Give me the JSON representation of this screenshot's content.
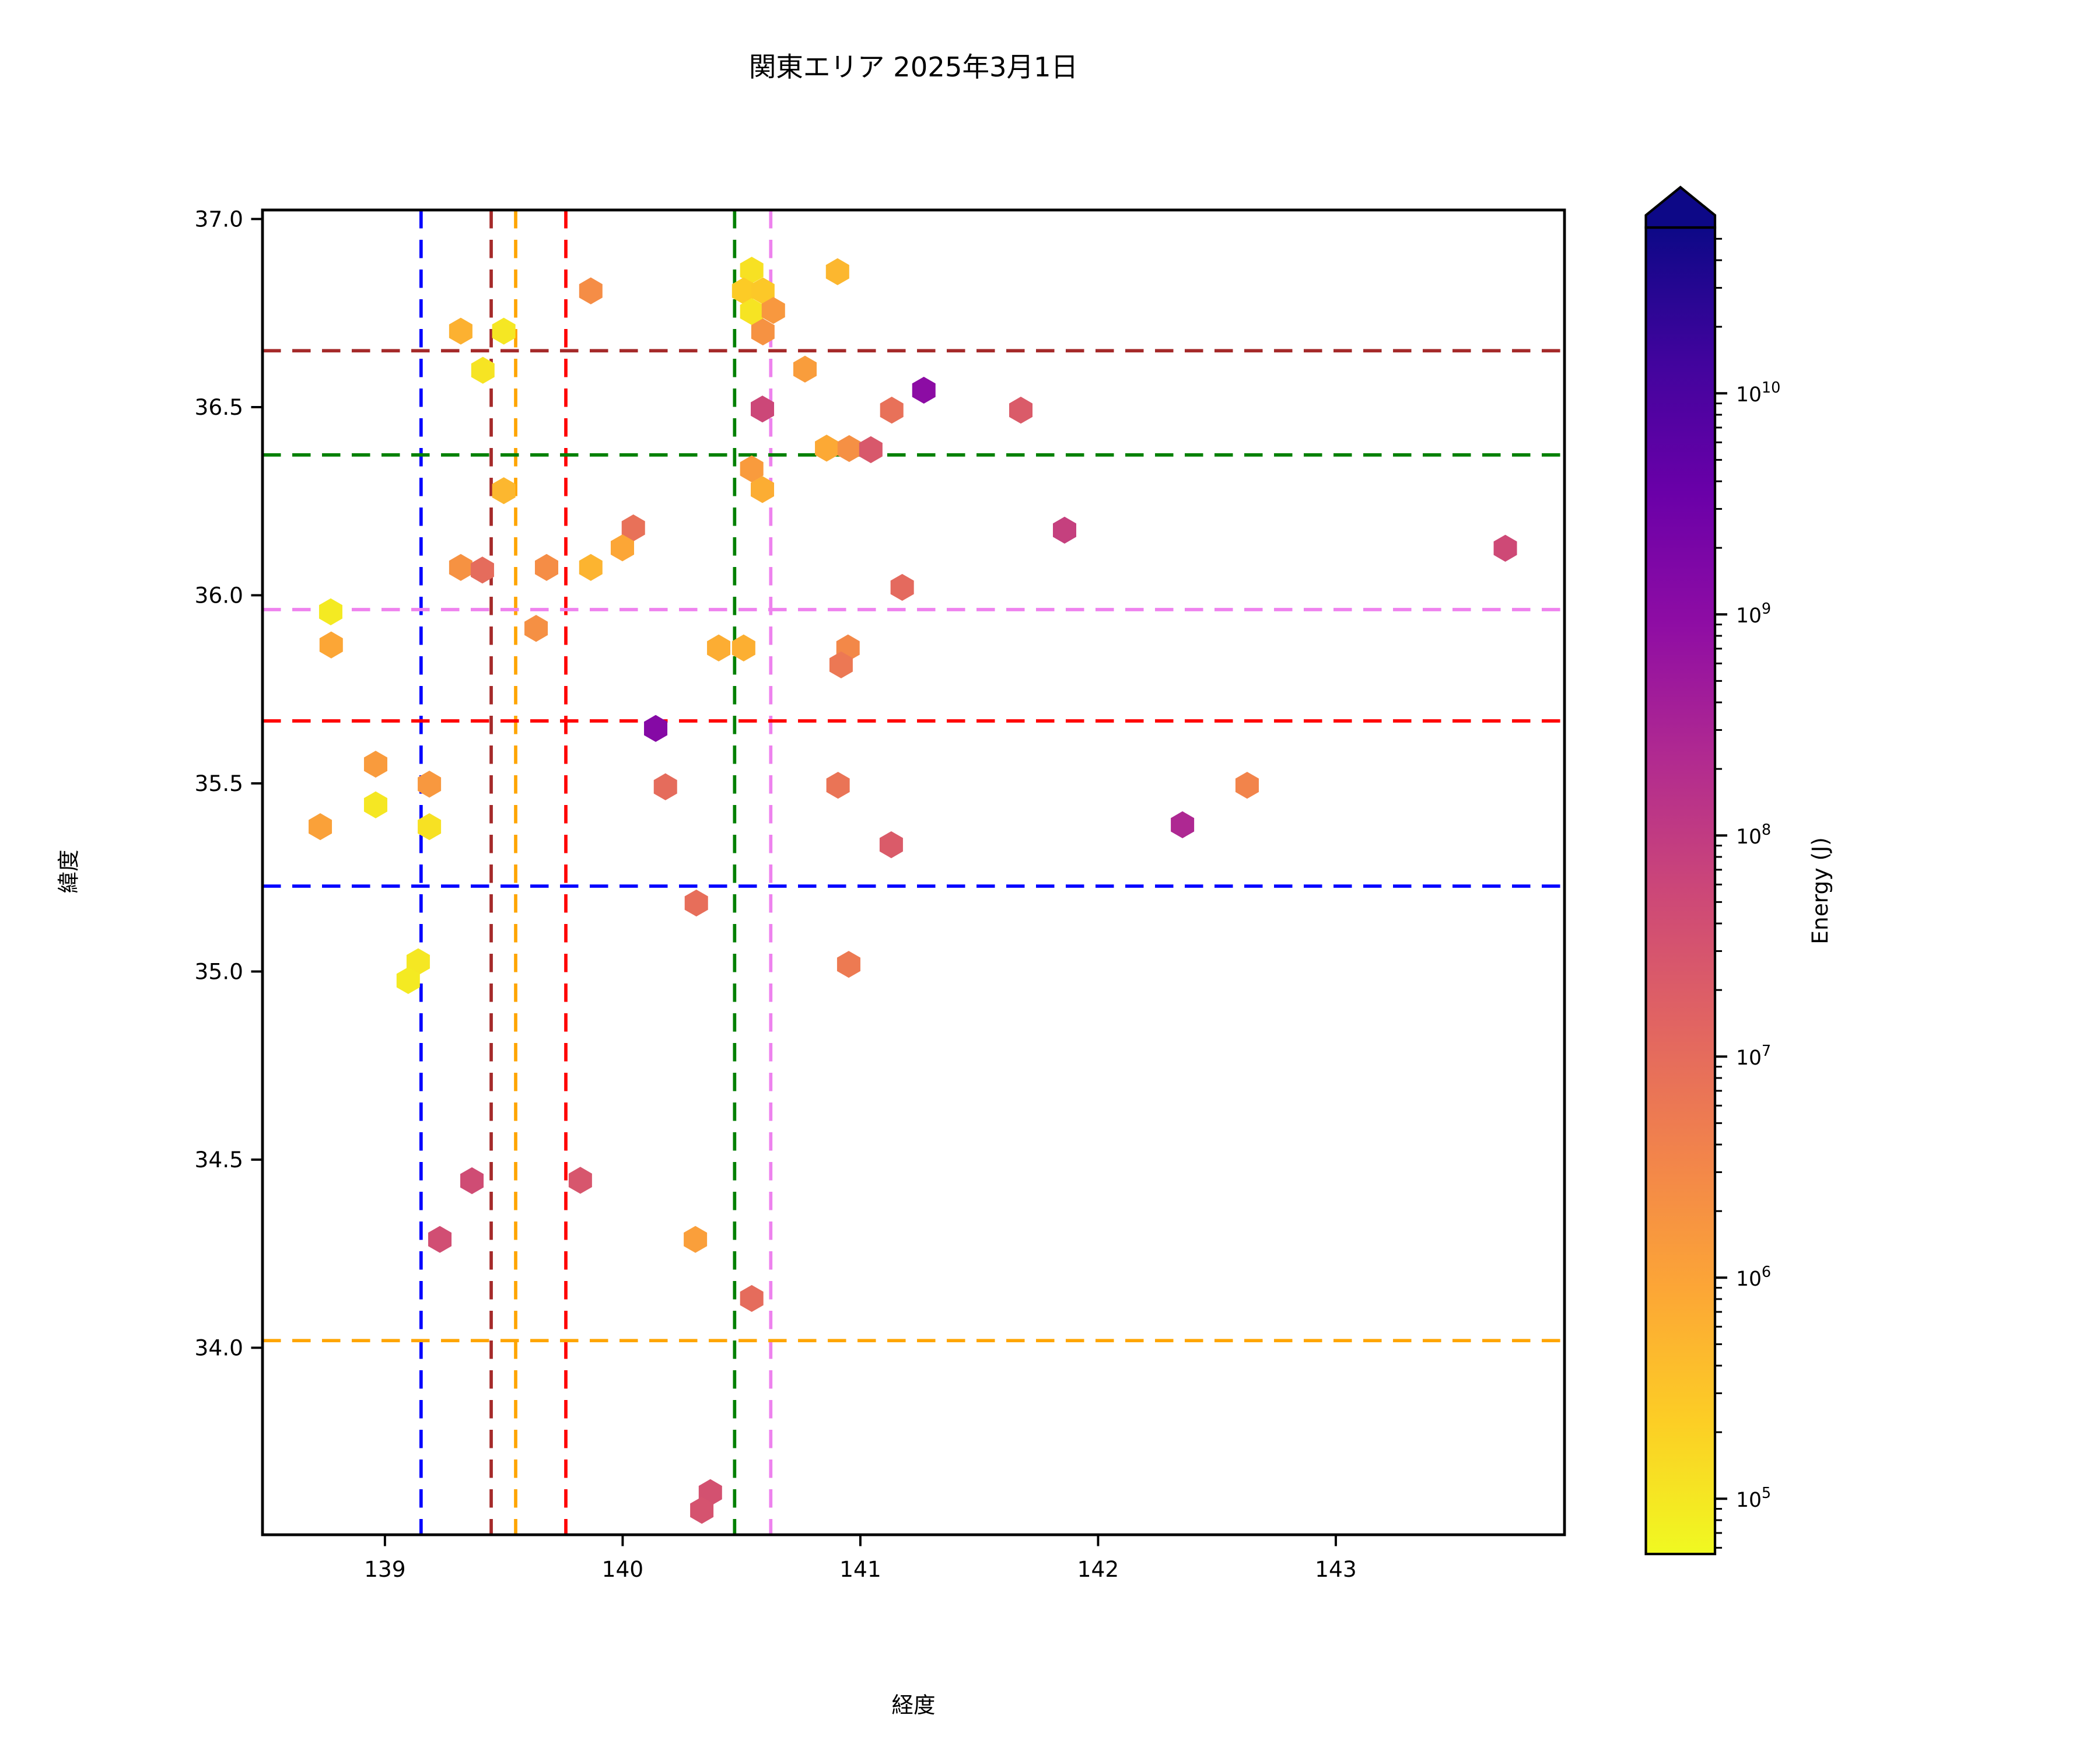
{
  "title": "関東エリア 2025年3月1日",
  "chart_data": {
    "type": "scatter",
    "marker": "hexagon",
    "title": "関東エリア 2025年3月1日",
    "xlabel": "経度",
    "ylabel": "緯度",
    "xlim": [
      138.485,
      143.962
    ],
    "ylim": [
      33.503,
      37.024
    ],
    "xticks": [
      139,
      140,
      141,
      142,
      143
    ],
    "yticks": [
      37.0,
      36.5,
      36.0,
      35.5,
      35.0,
      34.5,
      34.0
    ],
    "grid": false,
    "colorbar": {
      "label": "Energy (J)",
      "scale": "log",
      "colormap": "plasma_r",
      "extend": "max",
      "log10_range": [
        4.75,
        10.75
      ],
      "tick_exponents": [
        5,
        6,
        7,
        8,
        9,
        10
      ],
      "arrow_color": "#0d0887"
    },
    "guide_lines": {
      "style": "dashed",
      "vertical": [
        {
          "lon": 139.152,
          "color": "#0000ff"
        },
        {
          "lon": 139.447,
          "color": "#a52a2a"
        },
        {
          "lon": 139.55,
          "color": "#ffa500"
        },
        {
          "lon": 139.761,
          "color": "#ff0000"
        },
        {
          "lon": 140.471,
          "color": "#008000"
        },
        {
          "lon": 140.623,
          "color": "#ee82ee"
        }
      ],
      "horizontal": [
        {
          "lat": 36.65,
          "color": "#a52a2a"
        },
        {
          "lat": 36.373,
          "color": "#008000"
        },
        {
          "lat": 35.962,
          "color": "#ee82ee"
        },
        {
          "lat": 35.666,
          "color": "#ff0000"
        },
        {
          "lat": 35.227,
          "color": "#0000ff"
        },
        {
          "lat": 34.019,
          "color": "#ffa500"
        }
      ]
    },
    "points": [
      {
        "lon": 139.866,
        "lat": 36.809,
        "energy_j": 2500000.0
      },
      {
        "lon": 139.319,
        "lat": 36.702,
        "energy_j": 600000.0
      },
      {
        "lon": 139.5,
        "lat": 36.702,
        "energy_j": 100000.0
      },
      {
        "lon": 139.412,
        "lat": 36.598,
        "energy_j": 110000.0
      },
      {
        "lon": 139.5,
        "lat": 36.278,
        "energy_j": 500000.0
      },
      {
        "lon": 140.045,
        "lat": 36.179,
        "energy_j": 8000000.0
      },
      {
        "lon": 139.999,
        "lat": 36.126,
        "energy_j": 900000.0
      },
      {
        "lon": 139.319,
        "lat": 36.074,
        "energy_j": 2000000.0
      },
      {
        "lon": 139.41,
        "lat": 36.067,
        "energy_j": 10000000.0
      },
      {
        "lon": 139.68,
        "lat": 36.074,
        "energy_j": 2500000.0
      },
      {
        "lon": 139.866,
        "lat": 36.074,
        "energy_j": 550000.0
      },
      {
        "lon": 138.772,
        "lat": 35.956,
        "energy_j": 90000.0
      },
      {
        "lon": 138.774,
        "lat": 35.868,
        "energy_j": 900000.0
      },
      {
        "lon": 139.636,
        "lat": 35.912,
        "energy_j": 2200000.0
      },
      {
        "lon": 138.961,
        "lat": 35.551,
        "energy_j": 1400000.0
      },
      {
        "lon": 139.187,
        "lat": 35.498,
        "energy_j": 1600000.0
      },
      {
        "lon": 138.961,
        "lat": 35.443,
        "energy_j": 100000.0
      },
      {
        "lon": 138.728,
        "lat": 35.385,
        "energy_j": 1100000.0
      },
      {
        "lon": 139.187,
        "lat": 35.385,
        "energy_j": 120000.0
      },
      {
        "lon": 140.31,
        "lat": 35.182,
        "energy_j": 9000000.0
      },
      {
        "lon": 140.139,
        "lat": 35.646,
        "energy_j": 1300000000.0
      },
      {
        "lon": 140.18,
        "lat": 35.491,
        "energy_j": 10000000.0
      },
      {
        "lon": 139.14,
        "lat": 35.026,
        "energy_j": 100000.0
      },
      {
        "lon": 139.098,
        "lat": 34.976,
        "energy_j": 90000.0
      },
      {
        "lon": 140.543,
        "lat": 36.864,
        "energy_j": 120000.0
      },
      {
        "lon": 140.509,
        "lat": 36.809,
        "energy_j": 250000.0
      },
      {
        "lon": 140.59,
        "lat": 36.809,
        "energy_j": 280000.0
      },
      {
        "lon": 140.543,
        "lat": 36.754,
        "energy_j": 110000.0
      },
      {
        "lon": 140.634,
        "lat": 36.757,
        "energy_j": 1600000.0
      },
      {
        "lon": 140.59,
        "lat": 36.7,
        "energy_j": 2000000.0
      },
      {
        "lon": 140.904,
        "lat": 36.86,
        "energy_j": 500000.0
      },
      {
        "lon": 140.767,
        "lat": 36.601,
        "energy_j": 1300000.0
      },
      {
        "lon": 141.267,
        "lat": 36.545,
        "energy_j": 1000000000.0
      },
      {
        "lon": 140.588,
        "lat": 36.495,
        "energy_j": 55000000.0
      },
      {
        "lon": 141.132,
        "lat": 36.492,
        "energy_j": 8000000.0
      },
      {
        "lon": 141.675,
        "lat": 36.492,
        "energy_j": 22000000.0
      },
      {
        "lon": 140.858,
        "lat": 36.391,
        "energy_j": 800000.0
      },
      {
        "lon": 140.953,
        "lat": 36.39,
        "energy_j": 2200000.0
      },
      {
        "lon": 141.044,
        "lat": 36.387,
        "energy_j": 25000000.0
      },
      {
        "lon": 140.543,
        "lat": 36.336,
        "energy_j": 1400000.0
      },
      {
        "lon": 140.588,
        "lat": 36.281,
        "energy_j": 700000.0
      },
      {
        "lon": 141.859,
        "lat": 36.173,
        "energy_j": 80000000.0
      },
      {
        "lon": 141.176,
        "lat": 36.021,
        "energy_j": 11000000.0
      },
      {
        "lon": 140.404,
        "lat": 35.86,
        "energy_j": 700000.0
      },
      {
        "lon": 140.509,
        "lat": 35.86,
        "energy_j": 650000.0
      },
      {
        "lon": 140.948,
        "lat": 35.86,
        "energy_j": 3000000.0
      },
      {
        "lon": 140.919,
        "lat": 35.815,
        "energy_j": 6000000.0
      },
      {
        "lon": 140.906,
        "lat": 35.495,
        "energy_j": 7000000.0
      },
      {
        "lon": 141.13,
        "lat": 35.337,
        "energy_j": 22000000.0
      },
      {
        "lon": 140.951,
        "lat": 35.019,
        "energy_j": 5500000.0
      },
      {
        "lon": 142.627,
        "lat": 35.495,
        "energy_j": 3500000.0
      },
      {
        "lon": 142.355,
        "lat": 35.39,
        "energy_j": 250000000.0
      },
      {
        "lon": 143.713,
        "lat": 36.125,
        "energy_j": 50000000.0
      },
      {
        "lon": 139.366,
        "lat": 34.444,
        "energy_j": 45000000.0
      },
      {
        "lon": 139.822,
        "lat": 34.445,
        "energy_j": 28000000.0
      },
      {
        "lon": 139.231,
        "lat": 34.288,
        "energy_j": 40000000.0
      },
      {
        "lon": 140.306,
        "lat": 34.288,
        "energy_j": 1200000.0
      },
      {
        "lon": 140.543,
        "lat": 34.131,
        "energy_j": 10000000.0
      },
      {
        "lon": 140.369,
        "lat": 33.615,
        "energy_j": 35000000.0
      },
      {
        "lon": 140.333,
        "lat": 33.568,
        "energy_j": 32000000.0
      }
    ]
  }
}
